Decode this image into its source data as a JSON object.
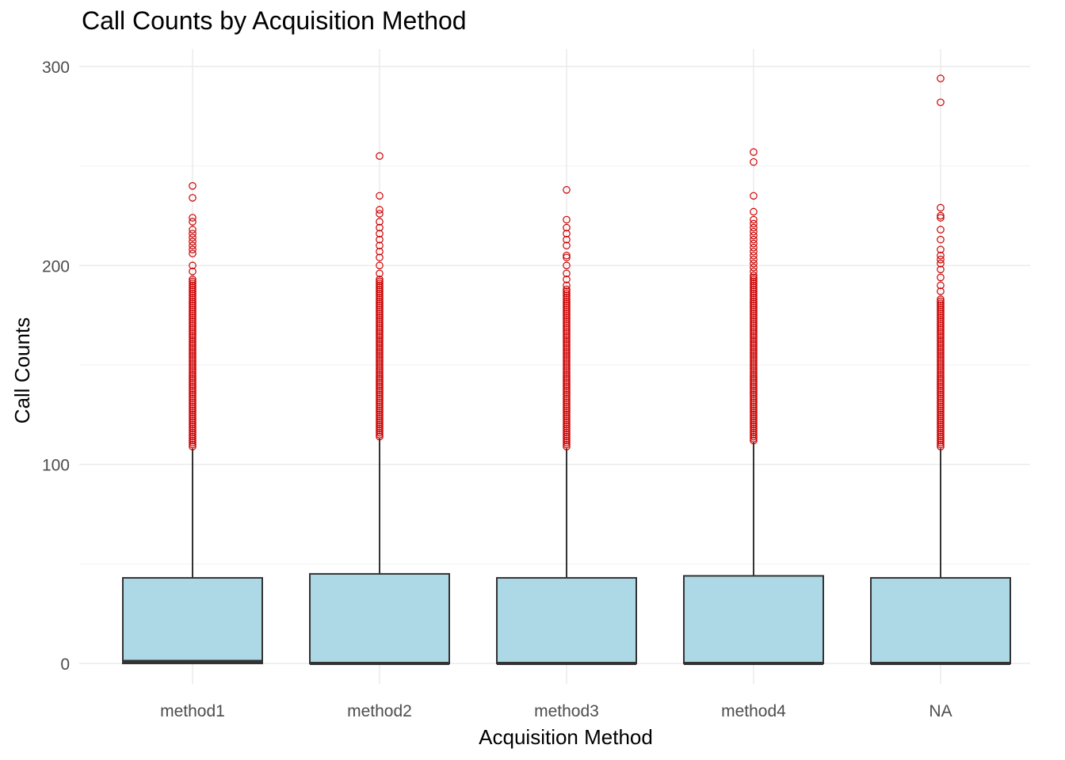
{
  "chart_data": {
    "type": "boxplot",
    "title": "Call Counts by Acquisition Method",
    "xlabel": "Acquisition Method",
    "ylabel": "Call Counts",
    "ylim": [
      -10,
      310
    ],
    "yticks": [
      0,
      100,
      200,
      300
    ],
    "grid": true,
    "legend": "none",
    "box_fill": "#add8e6",
    "box_stroke": "#333333",
    "outlier_color": "#cc0000",
    "categories": [
      "method1",
      "method2",
      "method3",
      "method4",
      "NA"
    ],
    "boxes": [
      {
        "name": "method1",
        "q1": 0,
        "median": 1,
        "q3": 43,
        "whisker_low": 0,
        "whisker_high": 108,
        "outliers": [
          109,
          110,
          111,
          112,
          113,
          114,
          115,
          116,
          117,
          118,
          119,
          120,
          121,
          122,
          123,
          124,
          125,
          126,
          127,
          128,
          129,
          130,
          131,
          132,
          133,
          134,
          135,
          136,
          137,
          138,
          139,
          140,
          141,
          142,
          143,
          144,
          145,
          146,
          147,
          148,
          149,
          150,
          151,
          152,
          153,
          154,
          155,
          156,
          157,
          158,
          159,
          160,
          161,
          162,
          163,
          164,
          165,
          166,
          167,
          168,
          169,
          170,
          171,
          172,
          173,
          174,
          175,
          176,
          177,
          178,
          179,
          180,
          181,
          182,
          183,
          184,
          185,
          186,
          187,
          188,
          189,
          190,
          191,
          192,
          193,
          197,
          200,
          206,
          208,
          210,
          212,
          214,
          216,
          218,
          222,
          224,
          234,
          240
        ]
      },
      {
        "name": "method2",
        "q1": 0,
        "median": 0,
        "q3": 45,
        "whisker_low": 0,
        "whisker_high": 113,
        "outliers": [
          114,
          115,
          116,
          117,
          118,
          119,
          120,
          121,
          122,
          123,
          124,
          125,
          126,
          127,
          128,
          129,
          130,
          131,
          132,
          133,
          134,
          135,
          136,
          137,
          138,
          139,
          140,
          141,
          142,
          143,
          144,
          145,
          146,
          147,
          148,
          149,
          150,
          151,
          152,
          153,
          154,
          155,
          156,
          157,
          158,
          159,
          160,
          161,
          162,
          163,
          164,
          165,
          166,
          167,
          168,
          169,
          170,
          171,
          172,
          173,
          174,
          175,
          176,
          177,
          178,
          179,
          180,
          181,
          182,
          183,
          184,
          185,
          186,
          187,
          188,
          189,
          190,
          191,
          192,
          193,
          196,
          200,
          204,
          207,
          210,
          213,
          216,
          219,
          222,
          226,
          228,
          235,
          255
        ]
      },
      {
        "name": "method3",
        "q1": 0,
        "median": 0,
        "q3": 43,
        "whisker_low": 0,
        "whisker_high": 108,
        "outliers": [
          109,
          110,
          111,
          112,
          113,
          114,
          115,
          116,
          117,
          118,
          119,
          120,
          121,
          122,
          123,
          124,
          125,
          126,
          127,
          128,
          129,
          130,
          131,
          132,
          133,
          134,
          135,
          136,
          137,
          138,
          139,
          140,
          141,
          142,
          143,
          144,
          145,
          146,
          147,
          148,
          149,
          150,
          151,
          152,
          153,
          154,
          155,
          156,
          157,
          158,
          159,
          160,
          161,
          162,
          163,
          164,
          165,
          166,
          167,
          168,
          169,
          170,
          171,
          172,
          173,
          174,
          175,
          176,
          177,
          178,
          179,
          180,
          181,
          182,
          183,
          184,
          185,
          186,
          187,
          188,
          190,
          193,
          196,
          200,
          204,
          205,
          210,
          213,
          216,
          219,
          223,
          238
        ]
      },
      {
        "name": "method4",
        "q1": 0,
        "median": 0,
        "q3": 44,
        "whisker_low": 0,
        "whisker_high": 111,
        "outliers": [
          112,
          113,
          114,
          115,
          116,
          117,
          118,
          119,
          120,
          121,
          122,
          123,
          124,
          125,
          126,
          127,
          128,
          129,
          130,
          131,
          132,
          133,
          134,
          135,
          136,
          137,
          138,
          139,
          140,
          141,
          142,
          143,
          144,
          145,
          146,
          147,
          148,
          149,
          150,
          151,
          152,
          153,
          154,
          155,
          156,
          157,
          158,
          159,
          160,
          161,
          162,
          163,
          164,
          165,
          166,
          167,
          168,
          169,
          170,
          171,
          172,
          173,
          174,
          175,
          176,
          177,
          178,
          179,
          180,
          181,
          182,
          183,
          184,
          185,
          186,
          187,
          188,
          189,
          190,
          191,
          192,
          193,
          194,
          195,
          197,
          199,
          201,
          203,
          205,
          207,
          209,
          211,
          213,
          215,
          217,
          219,
          221,
          223,
          227,
          235,
          252,
          257
        ]
      },
      {
        "name": "NA",
        "q1": 0,
        "median": 0,
        "q3": 43,
        "whisker_low": 0,
        "whisker_high": 108,
        "outliers": [
          109,
          110,
          111,
          112,
          113,
          114,
          115,
          116,
          117,
          118,
          119,
          120,
          121,
          122,
          123,
          124,
          125,
          126,
          127,
          128,
          129,
          130,
          131,
          132,
          133,
          134,
          135,
          136,
          137,
          138,
          139,
          140,
          141,
          142,
          143,
          144,
          145,
          146,
          147,
          148,
          149,
          150,
          151,
          152,
          153,
          154,
          155,
          156,
          157,
          158,
          159,
          160,
          161,
          162,
          163,
          164,
          165,
          166,
          167,
          168,
          169,
          170,
          171,
          172,
          173,
          174,
          175,
          176,
          177,
          178,
          179,
          180,
          181,
          182,
          183,
          187,
          190,
          194,
          198,
          201,
          203,
          205,
          208,
          213,
          218,
          224,
          225,
          229,
          282,
          294
        ]
      }
    ]
  }
}
